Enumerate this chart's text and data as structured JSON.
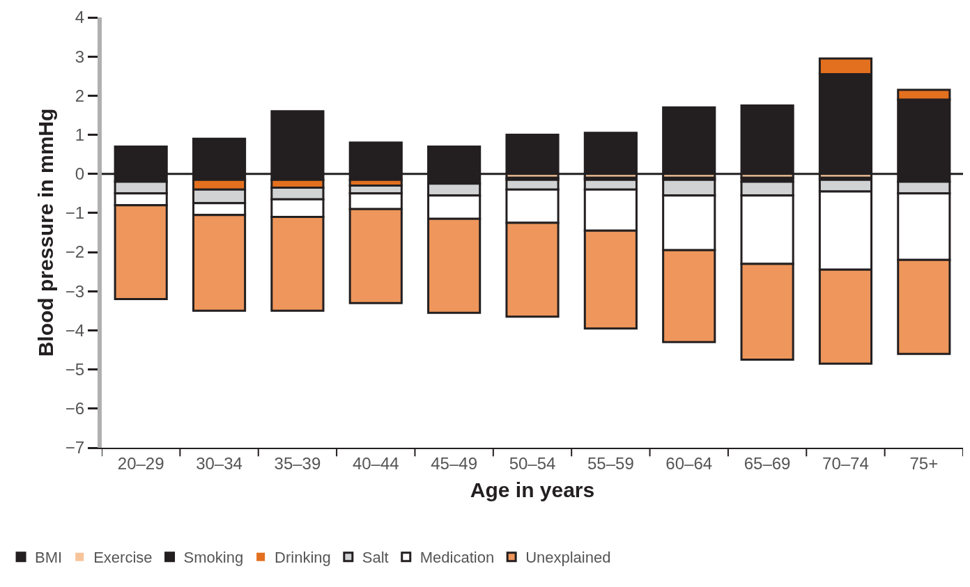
{
  "chart_data": {
    "type": "bar",
    "stacked": true,
    "xlabel": "Age in years",
    "ylabel": "Blood pressure in mmHg",
    "categories": [
      "20–29",
      "30–34",
      "35–39",
      "40–44",
      "45–49",
      "50–54",
      "55–59",
      "60–64",
      "65–69",
      "70–74",
      "75+"
    ],
    "series": [
      {
        "name": "BMI",
        "color": "#231f20",
        "values": [
          0.7,
          0.9,
          1.6,
          0.8,
          0.7,
          1.0,
          1.05,
          1.7,
          1.75,
          2.55,
          1.9
        ]
      },
      {
        "name": "Exercise",
        "color": "#f7c49a",
        "values": [
          0,
          0,
          0,
          0,
          0,
          -0.1,
          -0.1,
          -0.1,
          -0.1,
          -0.1,
          0
        ]
      },
      {
        "name": "Smoking",
        "color": "#231f20",
        "values": [
          -0.2,
          -0.15,
          -0.15,
          -0.15,
          -0.25,
          -0.05,
          -0.05,
          -0.05,
          -0.1,
          -0.05,
          -0.2
        ]
      },
      {
        "name": "Drinking",
        "color": "#e3701f",
        "values": [
          0,
          -0.25,
          -0.2,
          -0.15,
          0,
          0,
          0,
          0,
          0,
          0.4,
          0.25
        ]
      },
      {
        "name": "Salt",
        "color": "#d1d2d4",
        "values": [
          -0.3,
          -0.35,
          -0.3,
          -0.2,
          -0.3,
          -0.25,
          -0.25,
          -0.4,
          -0.35,
          -0.3,
          -0.3
        ]
      },
      {
        "name": "Medication",
        "color": "#ffffff",
        "values": [
          -0.3,
          -0.3,
          -0.45,
          -0.4,
          -0.6,
          -0.85,
          -1.05,
          -1.4,
          -1.75,
          -2.0,
          -1.7
        ]
      },
      {
        "name": "Unexplained",
        "color": "#ee965b",
        "values": [
          -2.4,
          -2.45,
          -2.4,
          -2.4,
          -2.4,
          -2.4,
          -2.5,
          -2.35,
          -2.45,
          -2.4,
          -2.4
        ]
      }
    ],
    "ylim": [
      -7,
      4
    ],
    "yticks": [
      -7,
      -6,
      -5,
      -4,
      -3,
      -2,
      -1,
      0,
      1,
      2,
      3,
      4
    ],
    "ref_lines": [
      {
        "axis": "y",
        "value": 0,
        "color": "#231f20"
      }
    ],
    "grid": false,
    "legend": "bottom"
  }
}
